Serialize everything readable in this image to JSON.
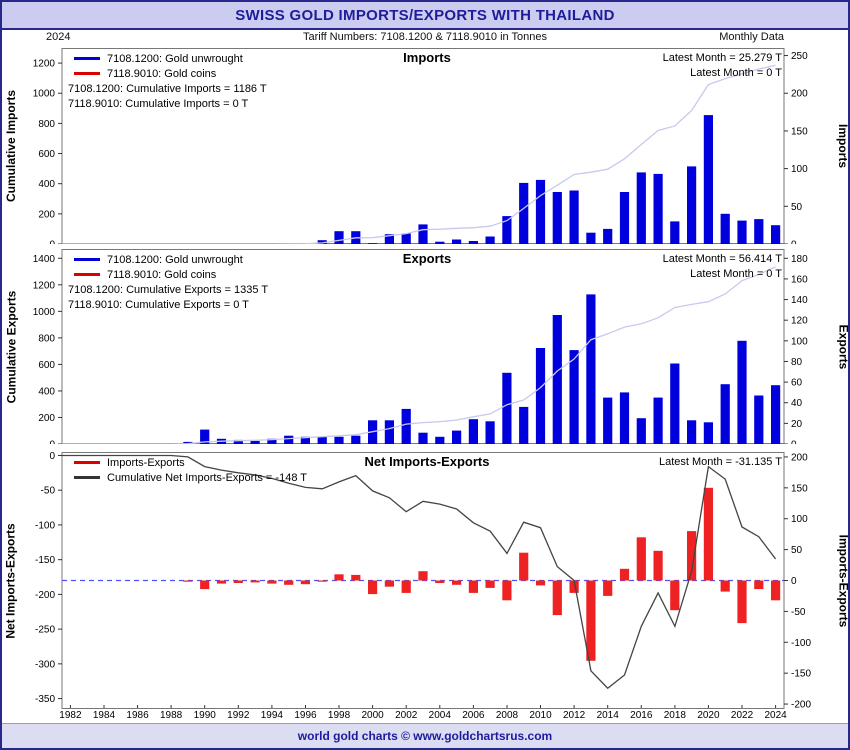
{
  "header": {
    "title": "SWISS GOLD IMPORTS/EXPORTS WITH THAILAND"
  },
  "subheader": {
    "year": "2024",
    "tariff": "Tariff Numbers: 7108.1200 & 7118.9010 in Tonnes",
    "frequency": "Monthly Data"
  },
  "footer": {
    "credit": "world gold charts © www.goldchartsrus.com"
  },
  "chart_data": {
    "type": "bar",
    "note": "Three stacked panels: annual bars (right axis) with cumulative line (left axis). Gold coins series (7118.9010) is zero throughout.",
    "years": [
      1982,
      1983,
      1984,
      1985,
      1986,
      1987,
      1988,
      1989,
      1990,
      1991,
      1992,
      1993,
      1994,
      1995,
      1996,
      1997,
      1998,
      1999,
      2000,
      2001,
      2002,
      2003,
      2004,
      2005,
      2006,
      2007,
      2008,
      2009,
      2010,
      2011,
      2012,
      2013,
      2014,
      2015,
      2016,
      2017,
      2018,
      2019,
      2020,
      2021,
      2022,
      2023,
      2024
    ],
    "x_ticks": [
      1982,
      1984,
      1986,
      1988,
      1990,
      1992,
      1994,
      1996,
      1998,
      2000,
      2002,
      2004,
      2006,
      2008,
      2010,
      2012,
      2014,
      2016,
      2018,
      2020,
      2022,
      2024
    ],
    "panels": [
      {
        "id": "imports",
        "title": "Imports",
        "legend": [
          {
            "label": "7108.1200: Gold unwrought",
            "color": "#0000dd"
          },
          {
            "label": "7118.9010: Gold coins",
            "color": "#dd0000"
          }
        ],
        "annotations": [
          "7108.1200: Cumulative Imports = 1186 T",
          "7118.9010: Cumulative Imports = 0 T"
        ],
        "latest": [
          "Latest Month = 25.279 T",
          "Latest Month = 0 T"
        ],
        "left_axis": {
          "label": "Cumulative Imports",
          "min": 0,
          "max": 1300,
          "ticks": [
            0,
            200,
            400,
            600,
            800,
            1000,
            1200
          ]
        },
        "right_axis": {
          "label": "Imports",
          "min": 0,
          "max": 260,
          "ticks": [
            0,
            50,
            100,
            150,
            200,
            250
          ]
        },
        "bar_color": "#0000dd",
        "line_color": "#c9c9f0",
        "values": [
          0,
          0,
          0,
          0,
          0,
          0,
          0,
          0,
          0,
          0,
          0,
          0,
          0,
          1,
          1,
          5,
          17,
          17,
          1,
          13,
          14,
          26,
          3,
          6,
          4,
          10,
          37,
          81,
          85,
          69,
          71,
          15,
          20,
          69,
          95,
          93,
          30,
          103,
          171,
          40,
          31,
          33,
          25
        ]
      },
      {
        "id": "exports",
        "title": "Exports",
        "legend": [
          {
            "label": "7108.1200: Gold unwrought",
            "color": "#0000dd"
          },
          {
            "label": "7118.9010: Gold coins",
            "color": "#dd0000"
          }
        ],
        "annotations": [
          "7108.1200: Cumulative Exports = 1335 T",
          "7118.9010: Cumulative Exports = 0 T"
        ],
        "latest": [
          "Latest Month = 56.414 T",
          "Latest Month = 0 T"
        ],
        "left_axis": {
          "label": "Cumulative Exports",
          "min": 0,
          "max": 1470,
          "ticks": [
            0,
            200,
            400,
            600,
            800,
            1000,
            1200,
            1400
          ]
        },
        "right_axis": {
          "label": "Exports",
          "min": 0,
          "max": 189,
          "ticks": [
            0,
            20,
            40,
            60,
            80,
            100,
            120,
            140,
            160,
            180
          ]
        },
        "bar_color": "#0000dd",
        "line_color": "#c9c9f0",
        "values": [
          0,
          0,
          0,
          0,
          0,
          0,
          0,
          2,
          14,
          5,
          4,
          3,
          5,
          8,
          7,
          7,
          7,
          8,
          23,
          23,
          34,
          11,
          7,
          13,
          24,
          22,
          69,
          36,
          93,
          125,
          91,
          145,
          45,
          50,
          25,
          45,
          78,
          23,
          21,
          58,
          100,
          47,
          57
        ]
      },
      {
        "id": "net",
        "title": "Net Imports-Exports",
        "legend": [
          {
            "label": "Imports-Exports",
            "color": "#dd0000"
          },
          {
            "label": "Cumulative Net Imports-Exports = -148 T",
            "color": "#333333"
          }
        ],
        "annotations": [],
        "latest": [
          "Latest Month = -31.135 T"
        ],
        "left_axis": {
          "label": "Net Imports-Exports",
          "min": -365,
          "max": 5,
          "ticks": [
            0,
            -50,
            -100,
            -150,
            -200,
            -250,
            -300,
            -350
          ]
        },
        "right_axis": {
          "label": "Imports-Exports",
          "min": -208,
          "max": 208,
          "ticks": [
            200,
            150,
            100,
            50,
            0,
            -50,
            -100,
            -150,
            -200
          ]
        },
        "bar_color": "#ee2222",
        "line_color": "#444444",
        "values": [
          0,
          0,
          0,
          0,
          0,
          0,
          0,
          -2,
          -14,
          -5,
          -4,
          -3,
          -5,
          -7,
          -6,
          -2,
          10,
          9,
          -22,
          -10,
          -20,
          15,
          -4,
          -7,
          -20,
          -12,
          -32,
          45,
          -8,
          -56,
          -20,
          -130,
          -25,
          19,
          70,
          48,
          -48,
          80,
          150,
          -18,
          -69,
          -14,
          -32
        ]
      }
    ]
  }
}
